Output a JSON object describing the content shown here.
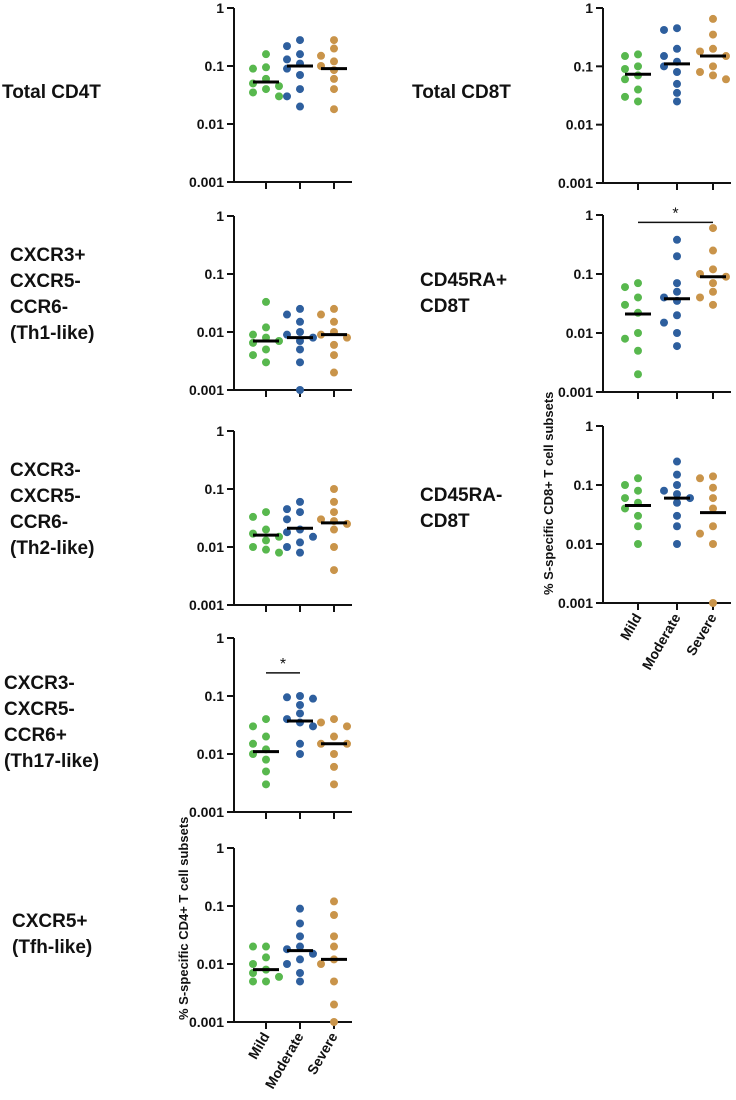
{
  "colors": {
    "Mild": "#58b84e",
    "Moderate": "#2e5f9e",
    "Severe": "#c9944a",
    "axis": "#111111",
    "median": "#000000"
  },
  "y_axis_titles": {
    "cd4": "% S-specific CD4+ T cell subsets",
    "cd8": "% S-specific CD8+ T cell subsets"
  },
  "row_labels": {
    "total_cd4": [
      "Total CD4T"
    ],
    "th1": [
      "CXCR3+",
      "CXCR5-",
      "CCR6-",
      "(Th1-like)"
    ],
    "th2": [
      "CXCR3-",
      "CXCR5-",
      "CCR6-",
      "(Th2-like)"
    ],
    "th17": [
      "CXCR3-",
      "CXCR5-",
      "CCR6+",
      "(Th17-like)"
    ],
    "tfh": [
      "CXCR5+",
      "(Tfh-like)"
    ],
    "total_cd8": [
      "Total CD8T"
    ],
    "cd45ra_pos": [
      "CD45RA+",
      "CD8T"
    ],
    "cd45ra_neg": [
      "CD45RA-",
      "CD8T"
    ]
  },
  "chart_data": [
    {
      "id": "total_cd4",
      "type": "scatter",
      "title": "Total CD4T",
      "yscale": "log",
      "ylim": [
        0.001,
        1
      ],
      "yticks": [
        "0.001",
        "0.01",
        "0.1",
        "1"
      ],
      "categories": [
        "Mild",
        "Moderate",
        "Severe"
      ],
      "series": [
        {
          "name": "Mild",
          "values": [
            0.16,
            0.095,
            0.09,
            0.06,
            0.05,
            0.045,
            0.04,
            0.035,
            0.03
          ],
          "median": 0.053
        },
        {
          "name": "Moderate",
          "values": [
            0.28,
            0.22,
            0.16,
            0.13,
            0.11,
            0.09,
            0.07,
            0.04,
            0.03,
            0.02
          ],
          "median": 0.1
        },
        {
          "name": "Severe",
          "values": [
            0.28,
            0.2,
            0.15,
            0.12,
            0.1,
            0.085,
            0.06,
            0.04,
            0.018
          ],
          "median": 0.09
        }
      ],
      "significance": []
    },
    {
      "id": "th1",
      "type": "scatter",
      "title": "CXCR3+ CXCR5- CCR6- (Th1-like)",
      "yscale": "log",
      "ylim": [
        0.001,
        1
      ],
      "yticks": [
        "0.001",
        "0.01",
        "0.1",
        "1"
      ],
      "categories": [
        "Mild",
        "Moderate",
        "Severe"
      ],
      "series": [
        {
          "name": "Mild",
          "values": [
            0.033,
            0.012,
            0.009,
            0.008,
            0.007,
            0.0065,
            0.005,
            0.004,
            0.003
          ],
          "median": 0.007
        },
        {
          "name": "Moderate",
          "values": [
            0.025,
            0.02,
            0.015,
            0.01,
            0.009,
            0.008,
            0.007,
            0.005,
            0.003,
            0.001
          ],
          "median": 0.008
        },
        {
          "name": "Severe",
          "values": [
            0.025,
            0.02,
            0.015,
            0.01,
            0.009,
            0.008,
            0.006,
            0.004,
            0.002
          ],
          "median": 0.009
        }
      ],
      "significance": []
    },
    {
      "id": "th2",
      "type": "scatter",
      "title": "CXCR3- CXCR5- CCR6- (Th2-like)",
      "yscale": "log",
      "ylim": [
        0.001,
        1
      ],
      "yticks": [
        "0.001",
        "0.01",
        "0.1",
        "1"
      ],
      "categories": [
        "Mild",
        "Moderate",
        "Severe"
      ],
      "series": [
        {
          "name": "Mild",
          "values": [
            0.04,
            0.033,
            0.02,
            0.017,
            0.015,
            0.013,
            0.01,
            0.009,
            0.008
          ],
          "median": 0.016
        },
        {
          "name": "Moderate",
          "values": [
            0.06,
            0.045,
            0.04,
            0.03,
            0.02,
            0.018,
            0.015,
            0.012,
            0.01,
            0.008
          ],
          "median": 0.021
        },
        {
          "name": "Severe",
          "values": [
            0.1,
            0.06,
            0.04,
            0.03,
            0.028,
            0.025,
            0.02,
            0.01,
            0.004
          ],
          "median": 0.026
        }
      ],
      "significance": []
    },
    {
      "id": "th17",
      "type": "scatter",
      "title": "CXCR3- CXCR5- CCR6+ (Th17-like)",
      "yscale": "log",
      "ylim": [
        0.001,
        1
      ],
      "yticks": [
        "0.001",
        "0.01",
        "0.1",
        "1"
      ],
      "categories": [
        "Mild",
        "Moderate",
        "Severe"
      ],
      "series": [
        {
          "name": "Mild",
          "values": [
            0.04,
            0.03,
            0.02,
            0.015,
            0.012,
            0.01,
            0.008,
            0.005,
            0.003
          ],
          "median": 0.011
        },
        {
          "name": "Moderate",
          "values": [
            0.1,
            0.095,
            0.09,
            0.07,
            0.05,
            0.04,
            0.035,
            0.03,
            0.015,
            0.01
          ],
          "median": 0.037
        },
        {
          "name": "Severe",
          "values": [
            0.04,
            0.035,
            0.03,
            0.02,
            0.015,
            0.015,
            0.01,
            0.006,
            0.003
          ],
          "median": 0.015
        }
      ],
      "significance": [
        {
          "from": "Mild",
          "to": "Moderate",
          "label": "*",
          "y": 0.25
        }
      ]
    },
    {
      "id": "tfh",
      "type": "scatter",
      "title": "CXCR5+ (Tfh-like)",
      "yscale": "log",
      "ylim": [
        0.001,
        1
      ],
      "yticks": [
        "0.001",
        "0.01",
        "0.1",
        "1"
      ],
      "categories": [
        "Mild",
        "Moderate",
        "Severe"
      ],
      "series": [
        {
          "name": "Mild",
          "values": [
            0.02,
            0.02,
            0.013,
            0.01,
            0.008,
            0.007,
            0.006,
            0.005,
            0.005
          ],
          "median": 0.008
        },
        {
          "name": "Moderate",
          "values": [
            0.09,
            0.05,
            0.03,
            0.02,
            0.018,
            0.015,
            0.012,
            0.01,
            0.007,
            0.005
          ],
          "median": 0.017
        },
        {
          "name": "Severe",
          "values": [
            0.12,
            0.07,
            0.03,
            0.02,
            0.012,
            0.01,
            0.005,
            0.002,
            0.001
          ],
          "median": 0.012
        }
      ],
      "significance": []
    },
    {
      "id": "total_cd8",
      "type": "scatter",
      "title": "Total CD8T",
      "yscale": "log",
      "ylim": [
        0.001,
        1
      ],
      "yticks": [
        "0.001",
        "0.01",
        "0.1",
        "1"
      ],
      "categories": [
        "Mild",
        "Moderate",
        "Severe"
      ],
      "series": [
        {
          "name": "Mild",
          "values": [
            0.16,
            0.15,
            0.1,
            0.09,
            0.07,
            0.06,
            0.04,
            0.03,
            0.025
          ],
          "median": 0.073
        },
        {
          "name": "Moderate",
          "values": [
            0.45,
            0.42,
            0.2,
            0.15,
            0.12,
            0.1,
            0.08,
            0.05,
            0.035,
            0.025
          ],
          "median": 0.11
        },
        {
          "name": "Severe",
          "values": [
            0.65,
            0.35,
            0.2,
            0.18,
            0.15,
            0.1,
            0.08,
            0.07,
            0.06
          ],
          "median": 0.15
        }
      ],
      "significance": []
    },
    {
      "id": "cd45ra_pos",
      "type": "scatter",
      "title": "CD45RA+ CD8T",
      "yscale": "log",
      "ylim": [
        0.001,
        1
      ],
      "yticks": [
        "0.001",
        "0.01",
        "0.1",
        "1"
      ],
      "categories": [
        "Mild",
        "Moderate",
        "Severe"
      ],
      "series": [
        {
          "name": "Mild",
          "values": [
            0.07,
            0.06,
            0.04,
            0.03,
            0.022,
            0.01,
            0.008,
            0.005,
            0.002
          ],
          "median": 0.021
        },
        {
          "name": "Moderate",
          "values": [
            0.38,
            0.2,
            0.07,
            0.05,
            0.04,
            0.035,
            0.02,
            0.015,
            0.01,
            0.006
          ],
          "median": 0.038
        },
        {
          "name": "Severe",
          "values": [
            0.6,
            0.25,
            0.12,
            0.1,
            0.09,
            0.07,
            0.05,
            0.04,
            0.03
          ],
          "median": 0.09
        }
      ],
      "significance": [
        {
          "from": "Mild",
          "to": "Severe",
          "label": "*",
          "y": 0.75
        }
      ]
    },
    {
      "id": "cd45ra_neg",
      "type": "scatter",
      "title": "CD45RA- CD8T",
      "yscale": "log",
      "ylim": [
        0.001,
        1
      ],
      "yticks": [
        "0.001",
        "0.01",
        "0.1",
        "1"
      ],
      "categories": [
        "Mild",
        "Moderate",
        "Severe"
      ],
      "series": [
        {
          "name": "Mild",
          "values": [
            0.13,
            0.1,
            0.08,
            0.06,
            0.05,
            0.04,
            0.03,
            0.02,
            0.01
          ],
          "median": 0.045
        },
        {
          "name": "Moderate",
          "values": [
            0.25,
            0.15,
            0.1,
            0.08,
            0.07,
            0.06,
            0.05,
            0.03,
            0.02,
            0.01
          ],
          "median": 0.06
        },
        {
          "name": "Severe",
          "values": [
            0.14,
            0.13,
            0.09,
            0.06,
            0.04,
            0.02,
            0.015,
            0.01,
            0.001
          ],
          "median": 0.034
        }
      ],
      "significance": []
    }
  ]
}
